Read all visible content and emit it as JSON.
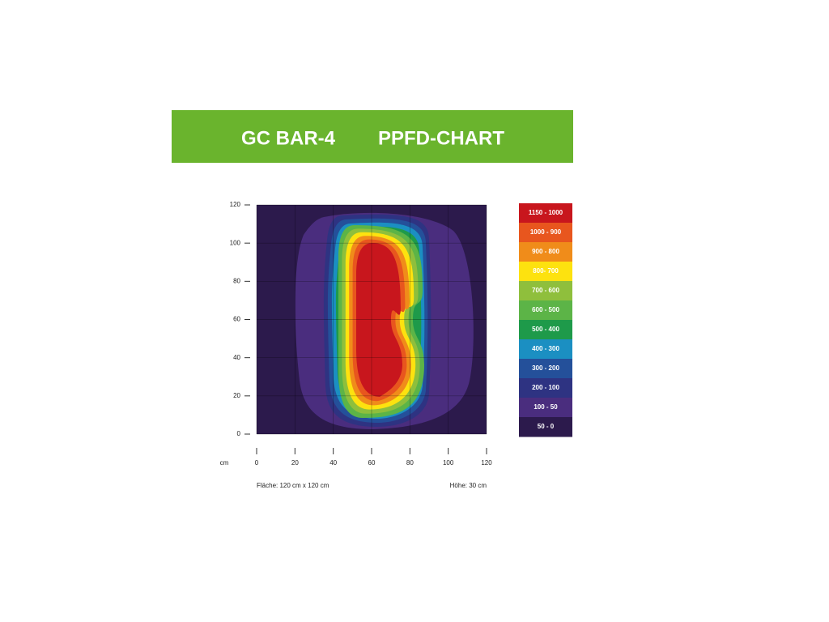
{
  "chart_data": {
    "type": "contour",
    "title": "GC BAR-4",
    "subtitle": "PPFD-CHART",
    "x_label": "cm",
    "xlim": [
      0,
      120
    ],
    "xticks": [
      0,
      20,
      40,
      60,
      80,
      100,
      120
    ],
    "ylim": [
      0,
      120
    ],
    "yticks": [
      0,
      20,
      40,
      60,
      80,
      100,
      120
    ],
    "grid": true,
    "legend": [
      {
        "label": "1150 - 1000",
        "color": "#c8161d"
      },
      {
        "label": "1000 - 900",
        "color": "#e8561e"
      },
      {
        "label": "900 - 800",
        "color": "#f08c1a"
      },
      {
        "label": "800- 700",
        "color": "#fde20f"
      },
      {
        "label": "700 - 600",
        "color": "#8fbf3c"
      },
      {
        "label": "600 - 500",
        "color": "#5cb447"
      },
      {
        "label": "500 - 400",
        "color": "#1e9a4a"
      },
      {
        "label": "400 - 300",
        "color": "#1b8fc2"
      },
      {
        "label": "300 - 200",
        "color": "#24509a"
      },
      {
        "label": "200 - 100",
        "color": "#2e3382"
      },
      {
        "label": "100 - 50",
        "color": "#4a2d7e"
      },
      {
        "label": "50 - 0",
        "color": "#2c1a4c"
      }
    ],
    "notes": [
      "Fläche: 120 cm x 120 cm",
      "Höhe: 30 cm"
    ]
  }
}
